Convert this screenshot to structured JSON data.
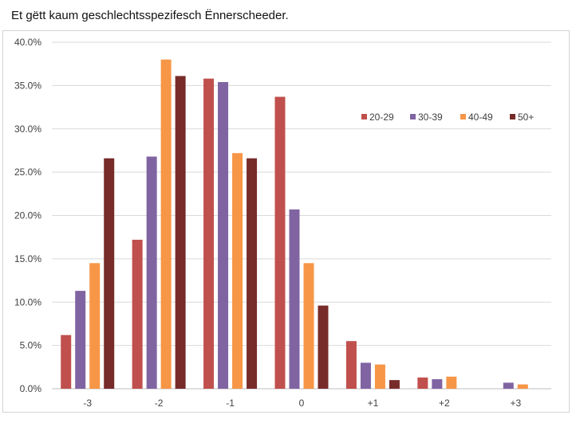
{
  "title": "Et gëtt kaum geschlechtsspezifesch Ënnerscheeder.",
  "chart_data": {
    "type": "bar",
    "title": "Et gëtt kaum geschlechtsspezifesch Ënnerscheeder.",
    "categories": [
      "-3",
      "-2",
      "-1",
      "0",
      "+1",
      "+2",
      "+3"
    ],
    "series": [
      {
        "name": "20-29",
        "color": "#c0504d",
        "values": [
          6.2,
          17.2,
          35.8,
          33.7,
          5.5,
          1.3,
          0.0
        ]
      },
      {
        "name": "30-39",
        "color": "#8064a2",
        "values": [
          11.3,
          26.8,
          35.4,
          20.7,
          3.0,
          1.1,
          0.7
        ]
      },
      {
        "name": "40-49",
        "color": "#f79646",
        "values": [
          14.5,
          38.0,
          27.2,
          14.5,
          2.8,
          1.4,
          0.5
        ]
      },
      {
        "name": "50+",
        "color": "#772c2a",
        "values": [
          26.6,
          36.1,
          26.6,
          9.6,
          1.0,
          0.0,
          0.0
        ]
      }
    ],
    "ylim": [
      0,
      40
    ],
    "yticks": [
      "0.0%",
      "5.0%",
      "10.0%",
      "15.0%",
      "20.0%",
      "25.0%",
      "30.0%",
      "35.0%",
      "40.0%"
    ],
    "grid": true,
    "legend_position": "top-right"
  }
}
